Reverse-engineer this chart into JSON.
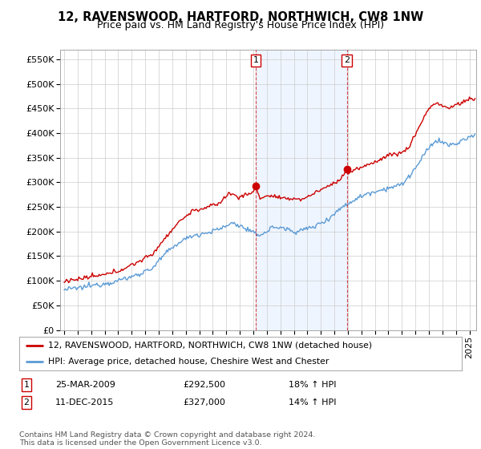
{
  "title": "12, RAVENSWOOD, HARTFORD, NORTHWICH, CW8 1NW",
  "subtitle": "Price paid vs. HM Land Registry's House Price Index (HPI)",
  "ylabel_ticks": [
    "£0",
    "£50K",
    "£100K",
    "£150K",
    "£200K",
    "£250K",
    "£300K",
    "£350K",
    "£400K",
    "£450K",
    "£500K",
    "£550K"
  ],
  "ytick_values": [
    0,
    50000,
    100000,
    150000,
    200000,
    250000,
    300000,
    350000,
    400000,
    450000,
    500000,
    550000
  ],
  "ylim": [
    0,
    570000
  ],
  "hpi_color": "#5b9bd5",
  "hpi_fill_color": "#ddeeff",
  "price_color": "#cc0000",
  "marker1_date": 2009.17,
  "marker1_price": 292500,
  "marker2_date": 2015.92,
  "marker2_price": 327000,
  "legend_line1": "12, RAVENSWOOD, HARTFORD, NORTHWICH, CW8 1NW (detached house)",
  "legend_line2": "HPI: Average price, detached house, Cheshire West and Chester",
  "footer": "Contains HM Land Registry data © Crown copyright and database right 2024.\nThis data is licensed under the Open Government Licence v3.0.",
  "background_color": "#ffffff",
  "plot_bg_color": "#ffffff",
  "grid_color": "#cccccc",
  "title_fontsize": 10.5,
  "subtitle_fontsize": 9,
  "tick_fontsize": 8,
  "xstart": 1994.7,
  "xend": 2025.5
}
